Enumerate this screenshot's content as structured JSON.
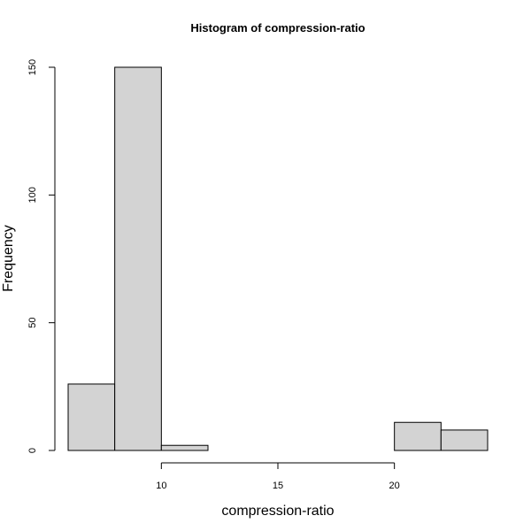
{
  "chart_data": {
    "type": "bar",
    "title": "Histogram of compression-ratio",
    "xlabel": "compression-ratio",
    "ylabel": "Frequency",
    "bins": [
      {
        "start": 6,
        "end": 8,
        "count": 26
      },
      {
        "start": 8,
        "end": 10,
        "count": 150
      },
      {
        "start": 10,
        "end": 12,
        "count": 2
      },
      {
        "start": 12,
        "end": 14,
        "count": 0
      },
      {
        "start": 14,
        "end": 16,
        "count": 0
      },
      {
        "start": 16,
        "end": 18,
        "count": 0
      },
      {
        "start": 18,
        "end": 20,
        "count": 0
      },
      {
        "start": 20,
        "end": 22,
        "count": 11
      },
      {
        "start": 22,
        "end": 24,
        "count": 8
      }
    ],
    "xlim": [
      6,
      24
    ],
    "ylim": [
      0,
      150
    ],
    "x_ticks": [
      10,
      15,
      20
    ],
    "y_ticks": [
      0,
      50,
      100,
      150
    ],
    "bar_color": "#d3d3d3",
    "grid": false
  }
}
